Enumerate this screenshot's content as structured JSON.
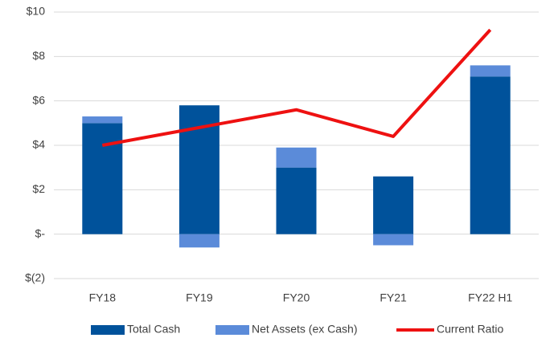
{
  "chart_data": {
    "type": "bar",
    "categories": [
      "FY18",
      "FY19",
      "FY20",
      "FY21",
      "FY22 H1"
    ],
    "series": [
      {
        "name": "Total Cash",
        "color": "#00529b",
        "type": "bar",
        "values": [
          5.0,
          5.8,
          3.0,
          2.6,
          7.1
        ]
      },
      {
        "name": "Net Assets (ex Cash)",
        "color": "#5b8bd9",
        "type": "bar",
        "values": [
          0.3,
          -0.6,
          0.9,
          -0.5,
          0.5
        ]
      },
      {
        "name": "Current Ratio",
        "color": "#ee1111",
        "type": "line",
        "values": [
          4.0,
          4.8,
          5.6,
          4.4,
          9.2
        ]
      }
    ],
    "ylim": [
      -2,
      10
    ],
    "yticks": [
      {
        "value": -2,
        "label": "$(2)"
      },
      {
        "value": 0,
        "label": "$-"
      },
      {
        "value": 2,
        "label": "$2"
      },
      {
        "value": 4,
        "label": "$4"
      },
      {
        "value": 6,
        "label": "$6"
      },
      {
        "value": 8,
        "label": "$8"
      },
      {
        "value": 10,
        "label": "$10"
      }
    ],
    "grid": true,
    "legend": "bottom"
  }
}
